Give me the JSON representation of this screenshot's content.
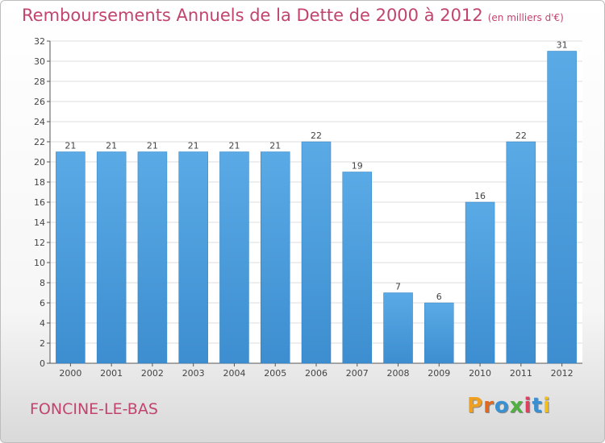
{
  "title": "Remboursements Annuels de la Dette de 2000 à 2012",
  "unit_note": "(en milliers d'€)",
  "commune": "FONCINE-LE-BAS",
  "logo": {
    "letters": [
      "P",
      "r",
      "o",
      "x",
      "i",
      "t",
      "i"
    ],
    "colors": [
      "#f0a020",
      "#e06820",
      "#3a90d0",
      "#50b040",
      "#e04060",
      "#3a90d0",
      "#f0c020"
    ]
  },
  "colors": {
    "bar": "#3d8ed0",
    "bar_light": "#5aaae6",
    "title": "#c2446e",
    "grid": "#dddddd"
  },
  "chart_data": {
    "type": "bar",
    "title": "Remboursements Annuels de la Dette de 2000 à 2012",
    "categories": [
      "2000",
      "2001",
      "2002",
      "2003",
      "2004",
      "2005",
      "2006",
      "2007",
      "2008",
      "2009",
      "2010",
      "2011",
      "2012"
    ],
    "values": [
      21,
      21,
      21,
      21,
      21,
      21,
      22,
      19,
      7,
      6,
      16,
      22,
      31
    ],
    "ylim": [
      0,
      32
    ],
    "yticks": [
      0,
      2,
      4,
      6,
      8,
      10,
      12,
      14,
      16,
      18,
      20,
      22,
      24,
      26,
      28,
      30,
      32
    ],
    "grid": true,
    "data_labels": true
  }
}
